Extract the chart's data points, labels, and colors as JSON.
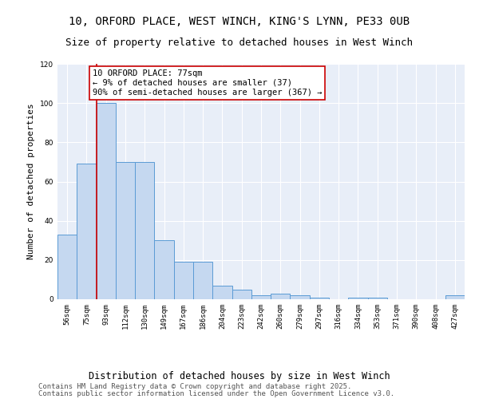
{
  "title_line1": "10, ORFORD PLACE, WEST WINCH, KING'S LYNN, PE33 0UB",
  "title_line2": "Size of property relative to detached houses in West Winch",
  "xlabel": "Distribution of detached houses by size in West Winch",
  "ylabel": "Number of detached properties",
  "categories": [
    "56sqm",
    "75sqm",
    "93sqm",
    "112sqm",
    "130sqm",
    "149sqm",
    "167sqm",
    "186sqm",
    "204sqm",
    "223sqm",
    "242sqm",
    "260sqm",
    "279sqm",
    "297sqm",
    "316sqm",
    "334sqm",
    "353sqm",
    "371sqm",
    "390sqm",
    "408sqm",
    "427sqm"
  ],
  "values": [
    33,
    69,
    100,
    70,
    70,
    30,
    19,
    19,
    7,
    5,
    2,
    3,
    2,
    1,
    0,
    1,
    1,
    0,
    0,
    0,
    2
  ],
  "bar_color": "#C5D8F0",
  "bar_edge_color": "#5B9BD5",
  "vline_x_index": 1,
  "vline_color": "#CC0000",
  "annotation_text": "10 ORFORD PLACE: 77sqm\n← 9% of detached houses are smaller (37)\n90% of semi-detached houses are larger (367) →",
  "annotation_box_color": "#CC0000",
  "ylim": [
    0,
    120
  ],
  "yticks": [
    0,
    20,
    40,
    60,
    80,
    100,
    120
  ],
  "plot_bg_color": "#E8EEF8",
  "fig_bg_color": "#FFFFFF",
  "grid_color": "#FFFFFF",
  "footer_line1": "Contains HM Land Registry data © Crown copyright and database right 2025.",
  "footer_line2": "Contains public sector information licensed under the Open Government Licence v3.0.",
  "title_fontsize": 10,
  "subtitle_fontsize": 9,
  "ylabel_fontsize": 8,
  "xlabel_fontsize": 8.5,
  "tick_fontsize": 6.5,
  "annotation_fontsize": 7.5,
  "footer_fontsize": 6.5
}
